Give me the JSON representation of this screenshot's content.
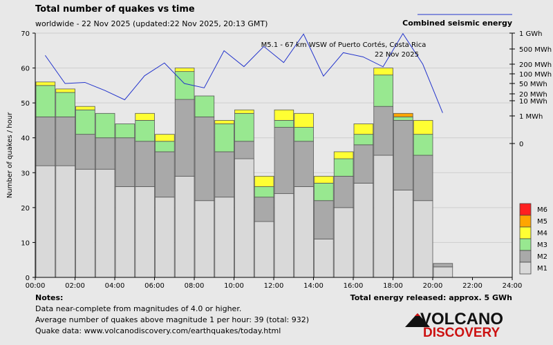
{
  "header": {
    "title": "Total number of quakes vs time",
    "subtitle": "worldwide - 22 Nov 2025 (updated:22 Nov 2025, 20:13 GMT)",
    "energy_legend": "Combined seismic energy"
  },
  "annotation": {
    "line1": "M5.1 - 67 km WSW of Puerto Cortés, Costa Rica",
    "line2": "22 Nov 2025"
  },
  "notes": {
    "heading": "Notes:",
    "line1": "Data near-complete from magnitudes of 4.0 or higher.",
    "line2": "Average number of quakes above magnitude 1 per hour: 39 (total: 932)",
    "line3": "Quake data: www.volcanodiscovery.com/earthquakes/today.html"
  },
  "energy_total": "Total energy released: approx. 5 GWh",
  "logo": {
    "word1": "VOLCANO",
    "word2": "DISCOVERY"
  },
  "colors": {
    "M1": "#d9d9d9",
    "M2": "#a9a9a9",
    "M3": "#98e890",
    "M4": "#ffff33",
    "M5": "#ffa500",
    "M6": "#ff2020",
    "energy_line": "#2233cc",
    "background": "#e8e8e8"
  },
  "chart_data": {
    "type": "bar",
    "stacked": true,
    "title": "Total number of quakes vs time",
    "xlabel": "",
    "ylabel": "Number of quakes / hour",
    "ylim": [
      0,
      70
    ],
    "yticks": [
      0,
      10,
      20,
      30,
      40,
      50,
      60,
      70
    ],
    "xlim": [
      0,
      24
    ],
    "xticks": [
      "00:00",
      "02:00",
      "04:00",
      "06:00",
      "08:00",
      "10:00",
      "12:00",
      "14:00",
      "16:00",
      "18:00",
      "20:00",
      "22:00",
      "24:00"
    ],
    "categories": [
      "00",
      "01",
      "02",
      "03",
      "04",
      "05",
      "06",
      "07",
      "08",
      "09",
      "10",
      "11",
      "12",
      "13",
      "14",
      "15",
      "16",
      "17",
      "18",
      "19",
      "20"
    ],
    "series": [
      {
        "name": "M1",
        "values": [
          32,
          32,
          31,
          31,
          26,
          26,
          23,
          29,
          22,
          23,
          34,
          16,
          24,
          26,
          11,
          20,
          27,
          35,
          25,
          22,
          3
        ]
      },
      {
        "name": "M2",
        "values": [
          14,
          14,
          10,
          9,
          14,
          13,
          13,
          22,
          24,
          13,
          5,
          7,
          19,
          13,
          11,
          9,
          11,
          14,
          20,
          13,
          1
        ]
      },
      {
        "name": "M3",
        "values": [
          9,
          7,
          7,
          7,
          4,
          6,
          3,
          8,
          6,
          8,
          8,
          3,
          2,
          4,
          5,
          5,
          3,
          9,
          1,
          6,
          0
        ]
      },
      {
        "name": "M4",
        "values": [
          1,
          1,
          1,
          0,
          0,
          2,
          2,
          1,
          0,
          1,
          1,
          3,
          3,
          4,
          2,
          2,
          3,
          2,
          0,
          4,
          0
        ]
      },
      {
        "name": "M5",
        "values": [
          0,
          0,
          0,
          0,
          0,
          0,
          0,
          0,
          0,
          0,
          0,
          0,
          0,
          0,
          0,
          0,
          0,
          0,
          1,
          0,
          0
        ]
      },
      {
        "name": "M6",
        "values": [
          0,
          0,
          0,
          0,
          0,
          0,
          0,
          0,
          0,
          0,
          0,
          0,
          0,
          0,
          0,
          0,
          0,
          0,
          0,
          0,
          0
        ]
      }
    ],
    "legend": [
      "M6",
      "M5",
      "M4",
      "M3",
      "M2",
      "M1"
    ],
    "legend_position": "bottom-right",
    "energy": {
      "name": "Combined seismic energy",
      "axis_labels": [
        "1 GWh",
        "500 MWh",
        "200 MWh",
        "100 MWh",
        "50 MWh",
        "20 MWh",
        "10 MWh",
        "1 MWh",
        "0"
      ],
      "axis_values_mwh": [
        1000,
        500,
        200,
        100,
        50,
        20,
        10,
        1,
        0
      ],
      "hours": [
        0.5,
        1.5,
        2.5,
        3.5,
        4.5,
        5.5,
        6.5,
        7.5,
        8.5,
        9.5,
        10.5,
        11.5,
        12.5,
        13.5,
        14.5,
        15.5,
        16.5,
        17.5,
        18.5,
        19.5,
        20.5
      ],
      "values_mwh": [
        340,
        50,
        54,
        27,
        11,
        87,
        215,
        50,
        34,
        450,
        168,
        560,
        221,
        960,
        85,
        400,
        310,
        166,
        980,
        200,
        1.6
      ]
    }
  }
}
